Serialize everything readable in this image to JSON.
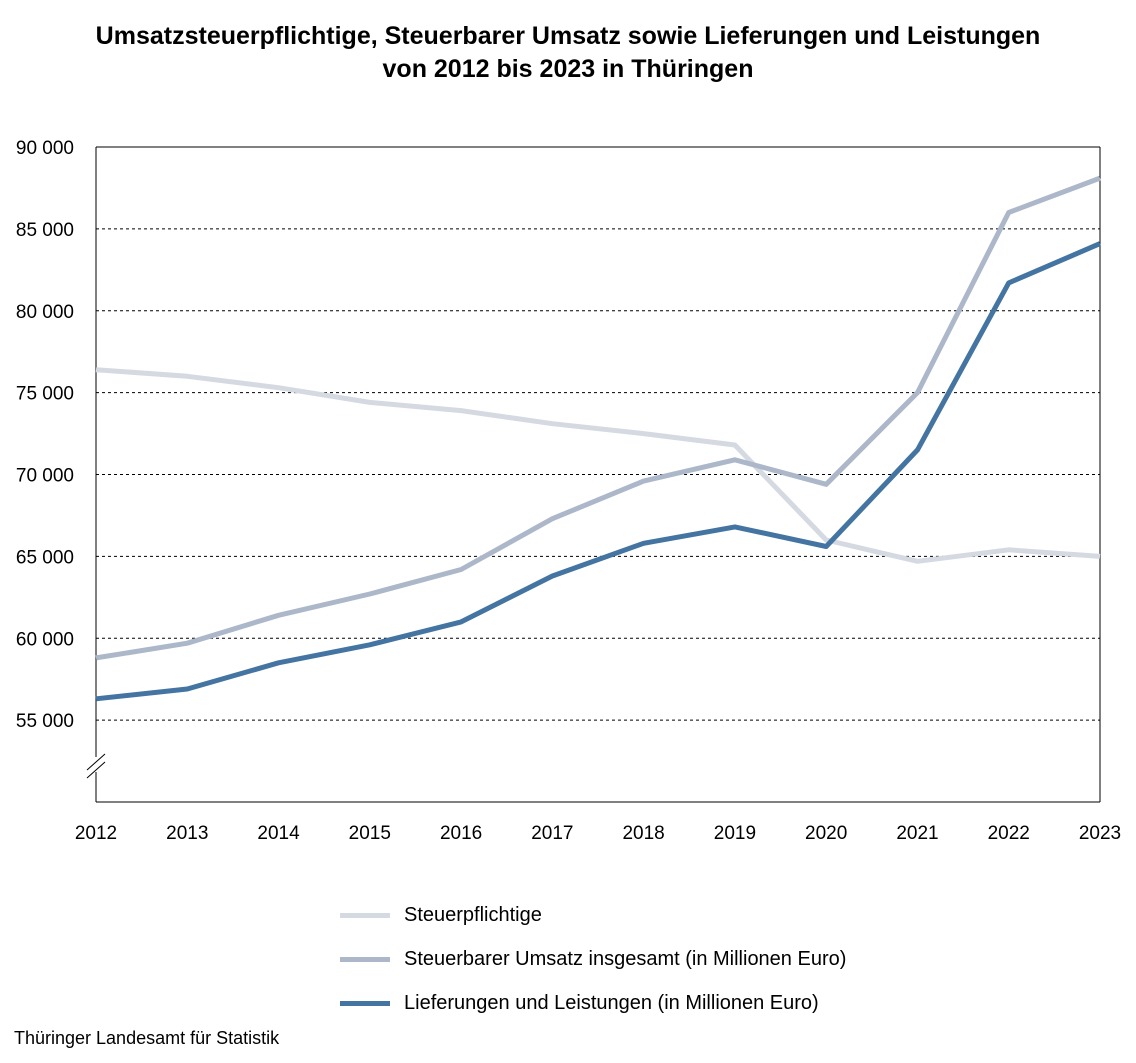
{
  "chart_data": {
    "type": "line",
    "title": "Umsatzsteuerpflichtige, Steuerbarer Umsatz sowie Lieferungen und Leistungen",
    "subtitle": "von 2012 bis 2023 in Thüringen",
    "xlabel": "",
    "ylabel": "",
    "x": [
      "2012",
      "2013",
      "2014",
      "2015",
      "2016",
      "2017",
      "2018",
      "2019",
      "2020",
      "2021",
      "2022",
      "2023"
    ],
    "ylim": [
      50000,
      90000
    ],
    "yticks": [
      55000,
      60000,
      65000,
      70000,
      75000,
      80000,
      85000,
      90000
    ],
    "ytick_labels": [
      "55 000",
      "60 000",
      "65 000",
      "70 000",
      "75 000",
      "80 000",
      "85 000",
      "90 000"
    ],
    "axis_break": true,
    "grid": "horizontal dashed",
    "legend_position": "bottom",
    "series": [
      {
        "name": "Steuerpflichtige",
        "color": "#d5d9e2",
        "values": [
          76400,
          76000,
          75300,
          74400,
          73900,
          73100,
          72500,
          71800,
          66000,
          64700,
          65400,
          65000
        ]
      },
      {
        "name": "Steuerbarer Umsatz insgesamt (in Millionen Euro)",
        "color": "#acb7c9",
        "values": [
          58800,
          59700,
          61400,
          62700,
          64200,
          67300,
          69600,
          70900,
          69400,
          75000,
          86000,
          88100
        ]
      },
      {
        "name": "Lieferungen und Leistungen (in Millionen Euro)",
        "color": "#4474a1",
        "values": [
          56300,
          56900,
          58500,
          59600,
          61000,
          63800,
          65800,
          66800,
          65600,
          71500,
          81700,
          84100
        ]
      }
    ]
  },
  "source": "Thüringer Landesamt für Statistik"
}
